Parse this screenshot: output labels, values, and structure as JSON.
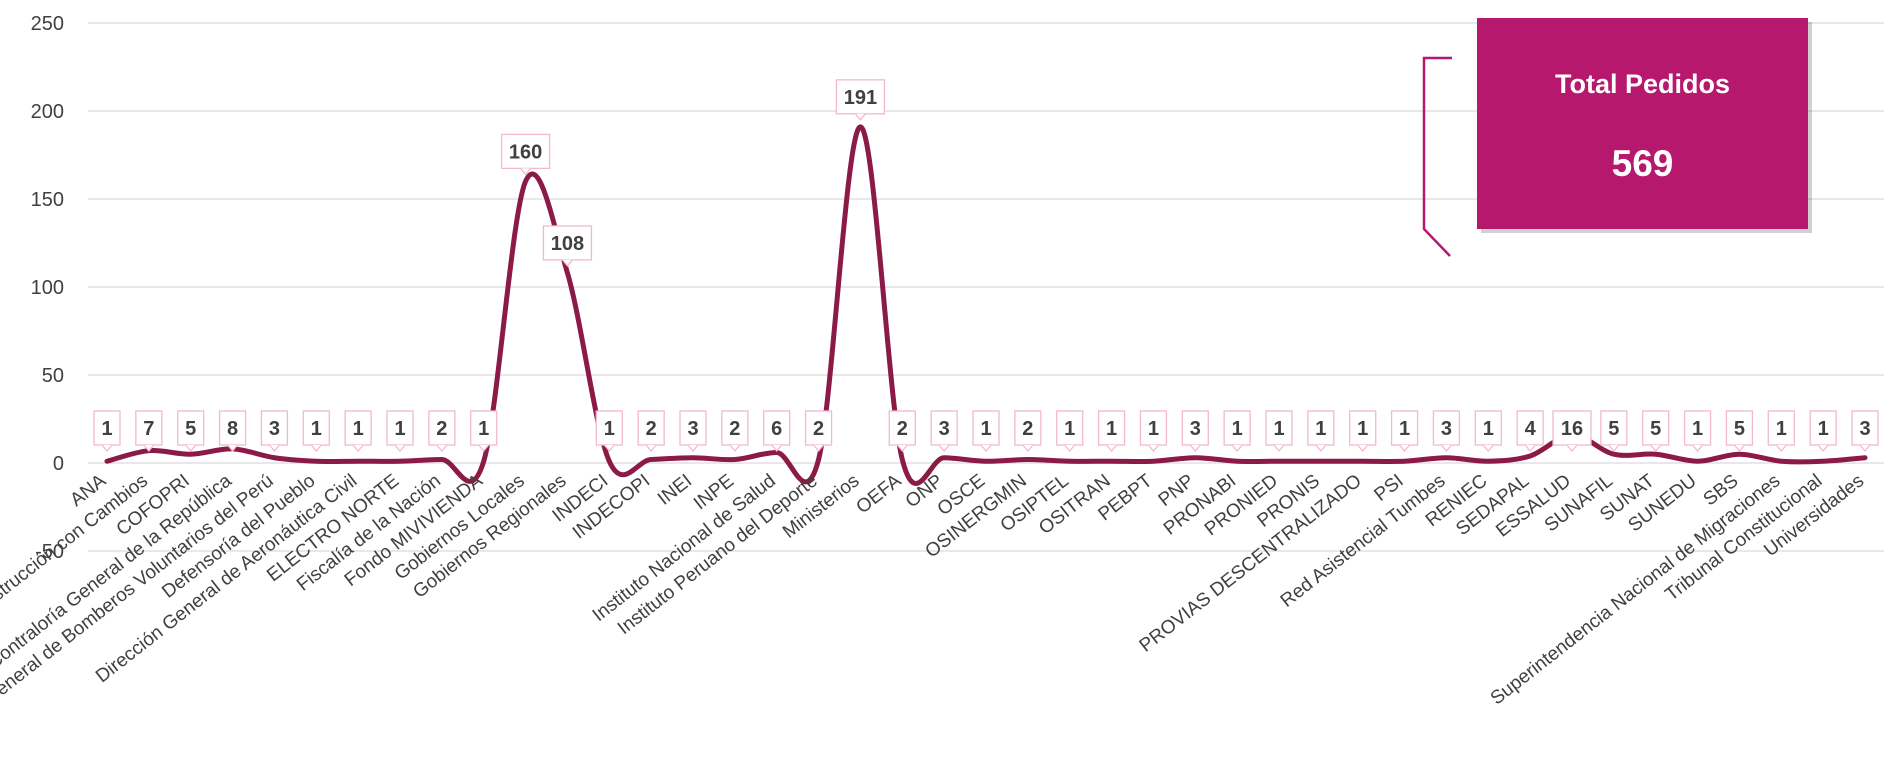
{
  "chart_data": {
    "type": "line",
    "title": "",
    "xlabel": "",
    "ylabel": "",
    "ylim": [
      -50,
      250
    ],
    "yticks": [
      -50,
      0,
      50,
      100,
      150,
      200,
      250
    ],
    "grid": true,
    "smooth": true,
    "show_data_labels": true,
    "categories": [
      "ANA",
      "Autoridad para la Reconstrucción con Cambios",
      "COFOPRI",
      "Contraloría General de la República",
      "Cuerpo General de Bomberos Voluntarios del Perú",
      "Defensoría del Pueblo",
      "Dirección General de Aeronáutica Civil",
      "ELECTRO NORTE",
      "Fiscalía de la Nación",
      "Fondo MIVIVIENDA",
      "Gobiernos Locales",
      "Gobiernos Regionales",
      "INDECI",
      "INDECOPI",
      "INEI",
      "INPE",
      "Instituto Nacional de Salud",
      "Instituto Peruano del Deporte",
      "Ministerios",
      "OEFA",
      "ONP",
      "OSCE",
      "OSINERGMIN",
      "OSIPTEL",
      "OSITRAN",
      "PEBPT",
      "PNP",
      "PRONABI",
      "PRONIED",
      "PRONIS",
      "PROVIAS DESCENTRALIZADO",
      "PSI",
      "Red Asistencial Tumbes",
      "RENIEC",
      "SEDAPAL",
      "ESSALUD",
      "SUNAFIL",
      "SUNAT",
      "SUNEDU",
      "SBS",
      "Superintendencia Nacional de Migraciones",
      "Tribunal Constitucional",
      "Universidades"
    ],
    "series": [
      {
        "values": [
          1,
          7,
          5,
          8,
          3,
          1,
          1,
          1,
          2,
          1,
          160,
          108,
          1,
          2,
          3,
          2,
          6,
          2,
          191,
          2,
          3,
          1,
          2,
          1,
          1,
          1,
          3,
          1,
          1,
          1,
          1,
          1,
          3,
          1,
          4,
          16,
          5,
          5,
          1,
          5,
          1,
          1,
          3
        ]
      }
    ]
  },
  "summary_card": {
    "title": "Total Pedidos",
    "value": "569"
  },
  "colors": {
    "line": "#8B1A47",
    "card_bg": "#B5186C",
    "label_border": "#F2B8CF",
    "grid": "#D9D9D9",
    "text": "#404040",
    "bracket": "#B5186C"
  }
}
